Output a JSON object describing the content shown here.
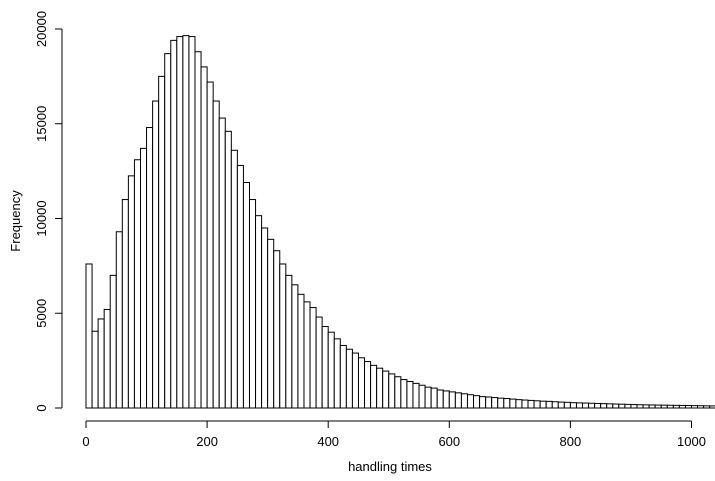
{
  "chart_data": {
    "type": "bar",
    "title": "",
    "xlabel": "handling times",
    "ylabel": "Frequency",
    "bin_width": 10,
    "x_start": 0,
    "xlim": [
      0,
      1040
    ],
    "ylim": [
      0,
      20000
    ],
    "x_ticks": [
      0,
      200,
      400,
      600,
      800,
      1000
    ],
    "y_ticks": [
      0,
      5000,
      10000,
      15000,
      20000
    ],
    "grid": false,
    "values": [
      7600,
      4050,
      4700,
      5200,
      7000,
      9300,
      11000,
      12250,
      13100,
      13700,
      14800,
      16200,
      17500,
      18700,
      19400,
      19600,
      19650,
      19600,
      18800,
      18000,
      17200,
      16200,
      15300,
      14600,
      13600,
      12800,
      11900,
      11000,
      10150,
      9500,
      8900,
      8300,
      7600,
      7000,
      6500,
      6000,
      5600,
      5300,
      4800,
      4300,
      4000,
      3650,
      3300,
      3100,
      2900,
      2650,
      2450,
      2250,
      2100,
      1950,
      1800,
      1650,
      1500,
      1400,
      1300,
      1200,
      1100,
      1050,
      950,
      900,
      850,
      800,
      750,
      700,
      650,
      600,
      580,
      550,
      520,
      500,
      470,
      440,
      420,
      400,
      380,
      360,
      350,
      330,
      310,
      300,
      280,
      270,
      260,
      250,
      240,
      230,
      220,
      210,
      200,
      190,
      180,
      170,
      165,
      160,
      155,
      150,
      145,
      140,
      135,
      130,
      125,
      120,
      115,
      110
    ]
  }
}
